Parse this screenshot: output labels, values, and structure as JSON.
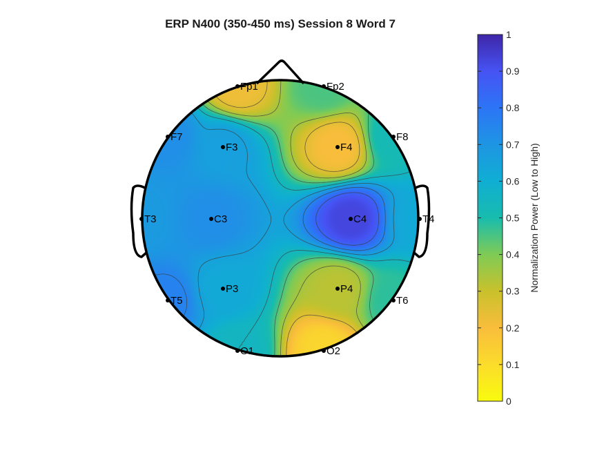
{
  "chart_data": {
    "type": "heatmap",
    "subtype": "eeg-topographic-map",
    "title": "ERP N400 (350-450 ms) Session 8 Word 7",
    "colorbar": {
      "label": "Normalization Power (Low to High)",
      "range": [
        0,
        1
      ],
      "ticks": [
        "0",
        "0.1",
        "0.2",
        "0.3",
        "0.4",
        "0.5",
        "0.6",
        "0.7",
        "0.8",
        "0.9",
        "1"
      ],
      "colormap": "parula",
      "colors": [
        "#3e26a8",
        "#4743f5",
        "#2f7cf9",
        "#15a9dc",
        "#12bfb8",
        "#4dcb78",
        "#a8c532",
        "#f2b83a",
        "#fbdc2b",
        "#f9fb0e"
      ]
    },
    "electrodes": [
      {
        "name": "Fp1",
        "value": 0.22
      },
      {
        "name": "Fp2",
        "value": 0.45
      },
      {
        "name": "F7",
        "value": 0.72
      },
      {
        "name": "F3",
        "value": 0.66
      },
      {
        "name": "F4",
        "value": 0.2
      },
      {
        "name": "F8",
        "value": 0.52
      },
      {
        "name": "T3",
        "value": 0.68
      },
      {
        "name": "C3",
        "value": 0.72
      },
      {
        "name": "C4",
        "value": 0.93
      },
      {
        "name": "T4",
        "value": 0.62
      },
      {
        "name": "T5",
        "value": 0.76
      },
      {
        "name": "P3",
        "value": 0.62
      },
      {
        "name": "P4",
        "value": 0.32
      },
      {
        "name": "T6",
        "value": 0.48
      },
      {
        "name": "O1",
        "value": 0.55
      },
      {
        "name": "O2",
        "value": 0.12
      }
    ],
    "contours": true,
    "grid": false
  }
}
